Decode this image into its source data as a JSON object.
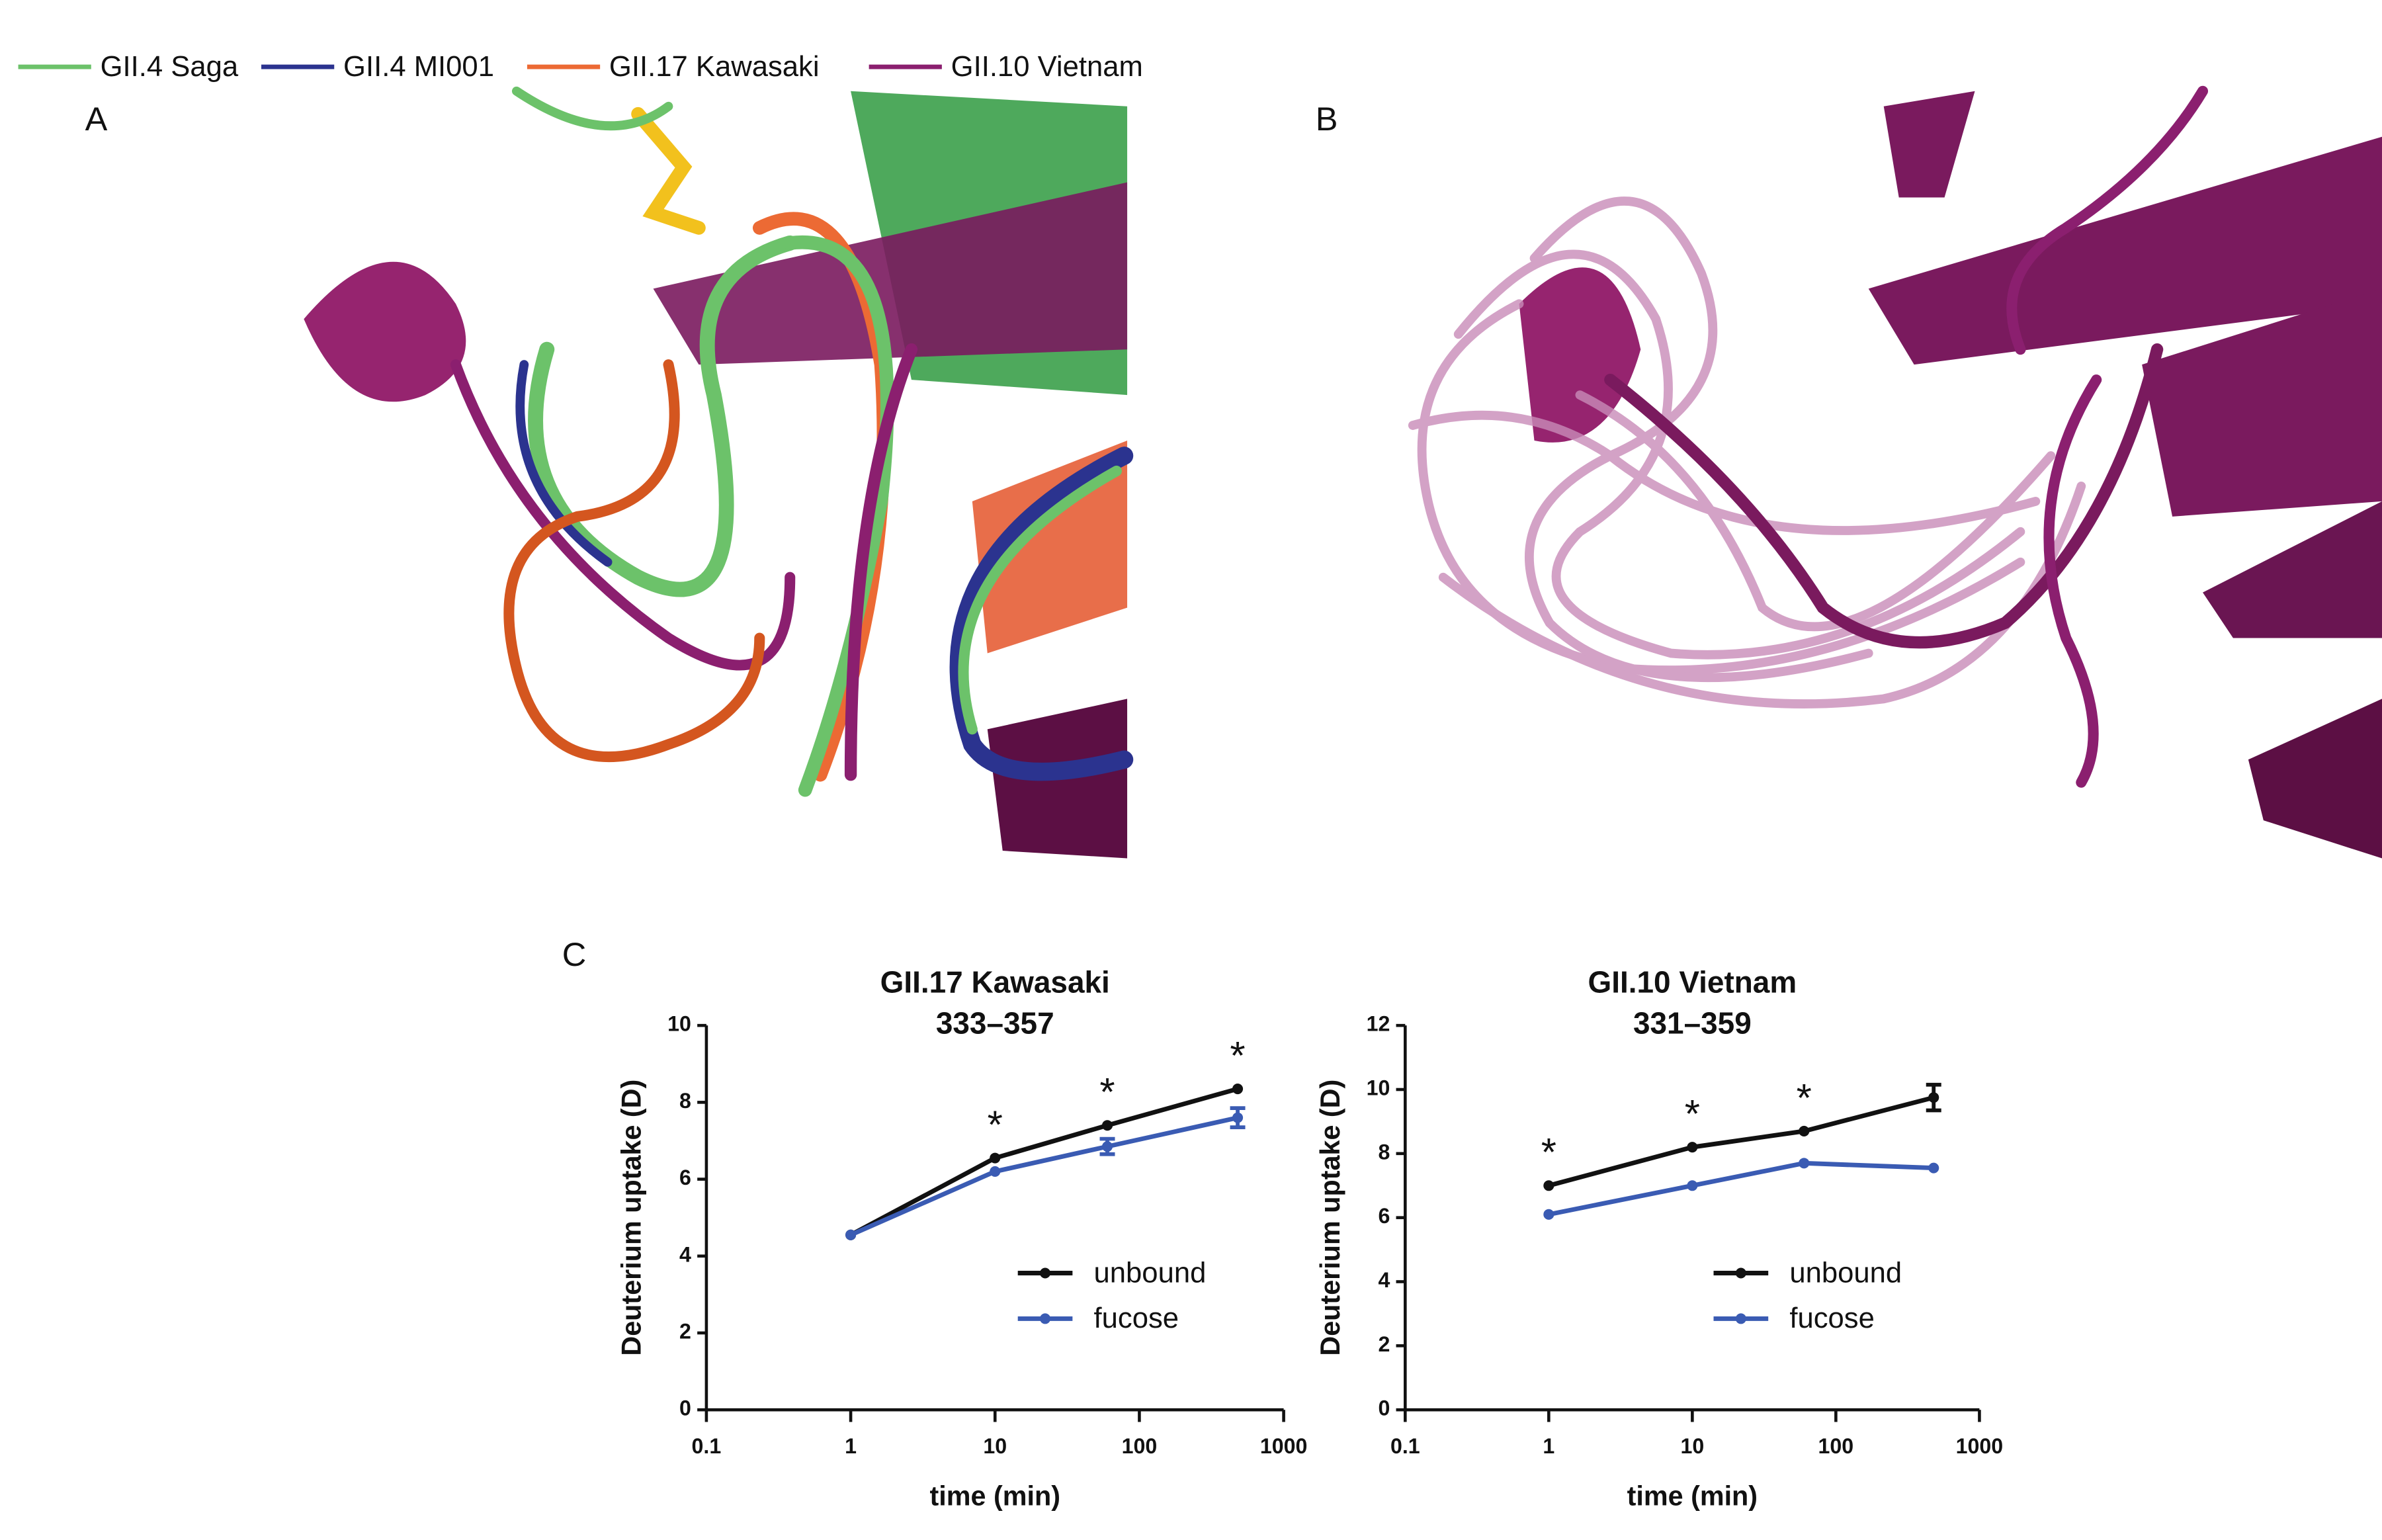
{
  "figure": {
    "structure_legend": [
      {
        "name": "GII.4 Saga",
        "color": "#6cc26a"
      },
      {
        "name": "GII.4 MI001",
        "color": "#2b338f"
      },
      {
        "name": "GII.17 Kawasaki",
        "color": "#ec6a34"
      },
      {
        "name": "GII.10 Vietnam",
        "color": "#8b1f6f"
      }
    ],
    "panels": [
      "A",
      "B",
      "C"
    ]
  },
  "chart_data": [
    {
      "type": "line",
      "title": "GII.17 Kawasaki",
      "subtitle": "333–357",
      "x_label": "time (min)",
      "y_label": "Deuterium uptake (D)",
      "x": [
        1,
        10,
        60,
        480
      ],
      "log_x": true,
      "xlim": [
        0.1,
        1000
      ],
      "xticks": [
        0.1,
        1,
        10,
        100,
        1000
      ],
      "ylim": [
        0,
        10
      ],
      "yticks": [
        0,
        2,
        4,
        6,
        8,
        10
      ],
      "series": [
        {
          "name": "unbound",
          "color": "#111111",
          "values": [
            4.55,
            6.55,
            7.4,
            8.35
          ]
        },
        {
          "name": "fucose",
          "color": "#3a5bb3",
          "values": [
            4.55,
            6.2,
            6.85,
            7.6
          ],
          "errors": [
            null,
            null,
            0.2,
            0.25
          ]
        }
      ],
      "annotations": [
        {
          "x": 10,
          "label": "*"
        },
        {
          "x": 60,
          "label": "*"
        },
        {
          "x": 480,
          "label": "*"
        }
      ],
      "legend": "lower right"
    },
    {
      "type": "line",
      "title": "GII.10 Vietnam",
      "subtitle": "331–359",
      "x_label": "time (min)",
      "y_label": "Deuterium uptake (D)",
      "x": [
        1,
        10,
        60,
        480
      ],
      "log_x": true,
      "xlim": [
        0.1,
        1000
      ],
      "xticks": [
        0.1,
        1,
        10,
        100,
        1000
      ],
      "ylim": [
        0,
        12
      ],
      "yticks": [
        0,
        2,
        4,
        6,
        8,
        10,
        12
      ],
      "series": [
        {
          "name": "unbound",
          "color": "#111111",
          "values": [
            7.0,
            8.2,
            8.7,
            9.75
          ],
          "errors": [
            null,
            null,
            null,
            0.4
          ]
        },
        {
          "name": "fucose",
          "color": "#3a5bb3",
          "values": [
            6.1,
            7.0,
            7.7,
            7.55
          ]
        }
      ],
      "annotations": [
        {
          "x": 1,
          "label": "*"
        },
        {
          "x": 10,
          "label": "*"
        },
        {
          "x": 60,
          "label": "*"
        }
      ],
      "legend": "lower right"
    }
  ]
}
